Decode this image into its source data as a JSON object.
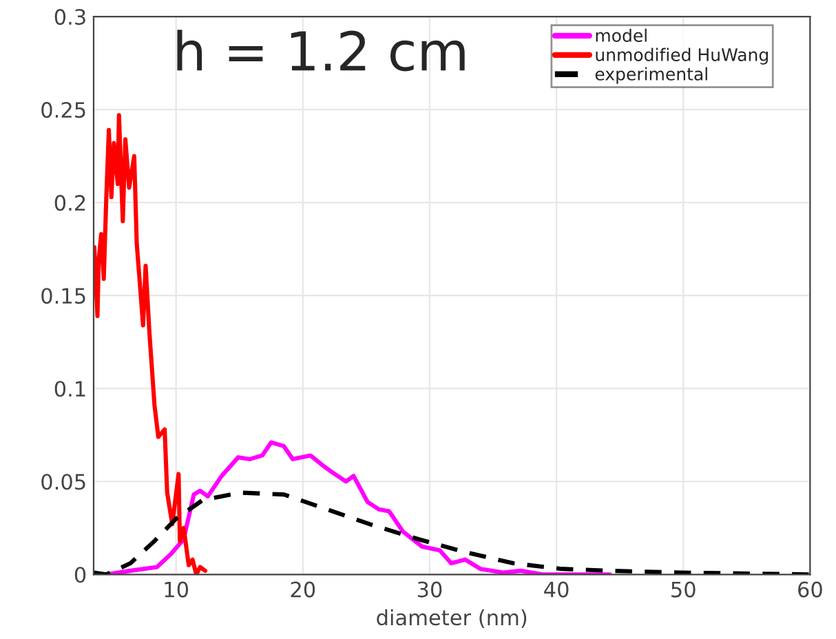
{
  "chart_data": {
    "type": "line",
    "xlabel": "diameter (nm)",
    "annotations": [
      "h = 1.2 cm"
    ],
    "xlim": [
      3.5,
      60
    ],
    "xticks": [
      10,
      20,
      30,
      40,
      50,
      60
    ],
    "ylim": [
      0,
      0.3
    ],
    "yticks": [
      0,
      0.05,
      0.1,
      0.15,
      0.2,
      0.25,
      0.3
    ],
    "grid": true,
    "legend": "top right",
    "marker": "none",
    "series": [
      {
        "name": "model",
        "color": "#ff00ff",
        "line_style": "solid",
        "x": [
          4.5,
          6.4,
          8.5,
          9.6,
          10.6,
          11.4,
          11.9,
          12.5,
          13.6,
          14.9,
          15.8,
          16.8,
          17.5,
          18.5,
          19.2,
          20.6,
          21.5,
          22.3,
          23.4,
          24.0,
          25.1,
          26.0,
          26.8,
          27.9,
          29.4,
          30.8,
          31.7,
          32.8,
          34.0,
          35.8,
          37.2,
          38.9,
          44.2
        ],
        "values": [
          0,
          0.002,
          0.004,
          0.011,
          0.019,
          0.043,
          0.045,
          0.042,
          0.053,
          0.063,
          0.062,
          0.064,
          0.071,
          0.069,
          0.062,
          0.064,
          0.059,
          0.055,
          0.05,
          0.053,
          0.039,
          0.035,
          0.034,
          0.023,
          0.015,
          0.013,
          0.006,
          0.008,
          0.003,
          0.001,
          0.002,
          0,
          0
        ]
      },
      {
        "name": "unmodified HuWang",
        "color": "#ff0000",
        "line_style": "solid",
        "x": [
          3.55,
          3.8,
          3.9,
          4.1,
          4.3,
          4.5,
          4.7,
          4.9,
          5.1,
          5.4,
          5.5,
          5.8,
          6.0,
          6.3,
          6.7,
          6.9,
          7.4,
          7.6,
          7.9,
          8.3,
          8.6,
          9.1,
          9.3,
          9.7,
          10.2,
          10.3,
          10.6,
          11.0,
          11.3,
          11.6,
          11.9,
          12.3
        ],
        "values": [
          0.176,
          0.139,
          0.169,
          0.183,
          0.159,
          0.203,
          0.239,
          0.203,
          0.232,
          0.21,
          0.247,
          0.19,
          0.234,
          0.208,
          0.225,
          0.178,
          0.134,
          0.166,
          0.13,
          0.091,
          0.074,
          0.078,
          0.044,
          0.027,
          0.054,
          0.018,
          0.025,
          0.005,
          0.008,
          0,
          0.004,
          0.002
        ]
      },
      {
        "name": "experimental",
        "color": "#000000",
        "line_style": "dashed",
        "x": [
          3.5,
          4.5,
          6.4,
          8.3,
          10.0,
          12.1,
          15.1,
          18.5,
          21.5,
          25.3,
          29.1,
          32.8,
          36.6,
          40.4,
          44.2,
          49.8,
          60
        ],
        "values": [
          0.001,
          0,
          0.006,
          0.018,
          0.03,
          0.04,
          0.044,
          0.043,
          0.036,
          0.027,
          0.019,
          0.012,
          0.006,
          0.003,
          0.002,
          0.001,
          0
        ]
      }
    ]
  }
}
